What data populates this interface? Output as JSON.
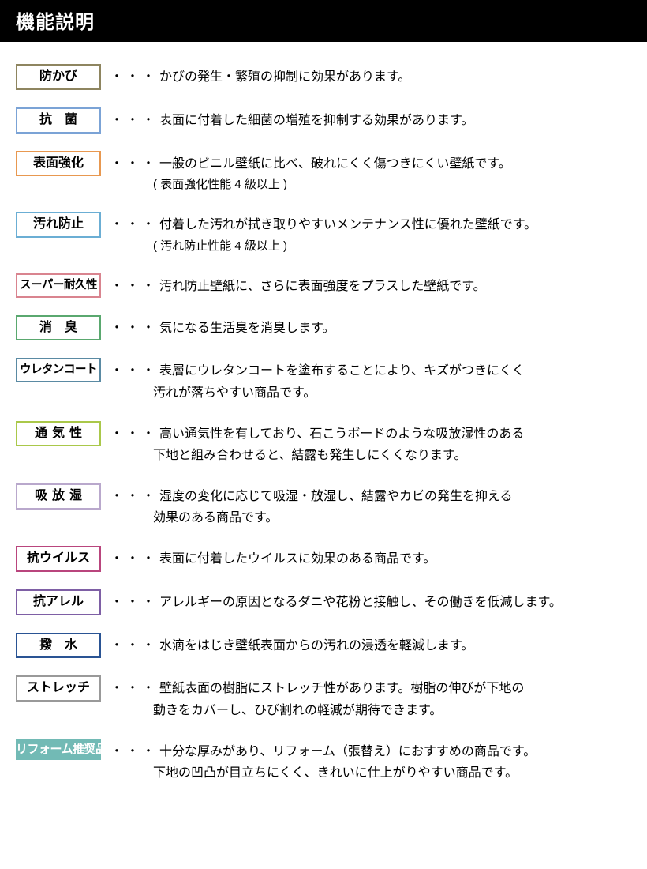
{
  "header": "機能説明",
  "dots": "・・・",
  "items": [
    {
      "label": "防かび",
      "border": "#8e8560",
      "css": "",
      "desc": "かびの発生・繁殖の抑制に効果があります。"
    },
    {
      "label": "抗　菌",
      "border": "#7ba3d6",
      "css": "",
      "desc": "表面に付着した細菌の増殖を抑制する効果があります。"
    },
    {
      "label": "表面強化",
      "border": "#e89850",
      "css": "",
      "desc": "一般のビニル壁紙に比べ、破れにくく傷つきにくい壁紙です。",
      "sub": "( 表面強化性能 4 級以上 )"
    },
    {
      "label": "汚れ防止",
      "border": "#6baed4",
      "css": "",
      "desc": "付着した汚れが拭き取りやすいメンテナンス性に優れた壁紙です。",
      "sub": "( 汚れ防止性能 4 級以上 )"
    },
    {
      "label": "スーパー耐久性",
      "border": "#d9848f",
      "css": "sm",
      "desc": "汚れ防止壁紙に、さらに表面強度をプラスした壁紙です。"
    },
    {
      "label": "消　臭",
      "border": "#5aa86f",
      "css": "",
      "desc": "気になる生活臭を消臭します。"
    },
    {
      "label": "ウレタンコート",
      "border": "#5a8aa3",
      "css": "sm",
      "desc": "表層にウレタンコートを塗布することにより、キズがつきにくく",
      "sub2": "汚れが落ちやすい商品です。"
    },
    {
      "label": "通気性",
      "border": "#aac84a",
      "css": "ls",
      "desc": "高い通気性を有しており、石こうボードのような吸放湿性のある",
      "sub2": "下地と組み合わせると、結露も発生しにくくなります。"
    },
    {
      "label": "吸放湿",
      "border": "#b9a8cc",
      "css": "ls",
      "desc": "湿度の変化に応じて吸湿・放湿し、結露やカビの発生を抑える",
      "sub2": "効果のある商品です。"
    },
    {
      "label": "抗ウイルス",
      "border": "#b9457d",
      "css": "",
      "desc": "表面に付着したウイルスに効果のある商品です。"
    },
    {
      "label": "抗アレル",
      "border": "#7e5fa5",
      "css": "",
      "desc": "アレルギーの原因となるダニや花粉と接触し、その働きを低減します。"
    },
    {
      "label": "撥　水",
      "border": "#2a5494",
      "css": "",
      "desc": "水滴をはじき壁紙表面からの汚れの浸透を軽減します。"
    },
    {
      "label": "ストレッチ",
      "border": "#999999",
      "css": "",
      "desc": "壁紙表面の樹脂にストレッチ性があります。樹脂の伸びが下地の",
      "sub2": "動きをカバーし、ひび割れの軽減が期待できます。"
    },
    {
      "label": "リフォーム推奨品",
      "fill": "#72bab5",
      "filled": true,
      "css": "sm",
      "desc": "十分な厚みがあり、リフォーム（張替え）におすすめの商品です。",
      "sub2": "下地の凹凸が目立ちにくく、きれいに仕上がりやすい商品です。"
    }
  ]
}
